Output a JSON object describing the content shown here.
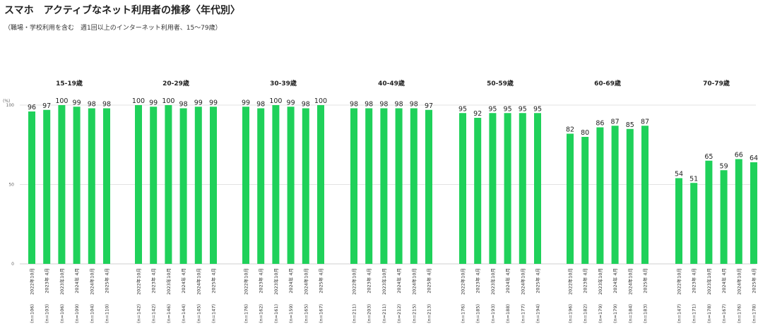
{
  "title": "スマホ　アクティブなネット利用者の推移〈年代別〉",
  "subtitle": "（職場・学校利用を含む　週1回以上のインターネット利用者、15〜79歳）",
  "chart_data": {
    "type": "bar",
    "unit_label": "(%)",
    "ylim": [
      0,
      100
    ],
    "yticks": [
      0,
      50,
      100
    ],
    "grid": true,
    "bar_color": "#1fd15a",
    "categories": [
      "2022年10月",
      "2023年 4月",
      "2023年10月",
      "2024年 4月",
      "2024年10月",
      "2025年 4月"
    ],
    "groups": [
      {
        "name": "15-19歳",
        "values": [
          96,
          97,
          100,
          99,
          98,
          98
        ],
        "n": [
          "(n=106)",
          "(n=103)",
          "(n=106)",
          "(n=109)",
          "(n=104)",
          "(n=110)"
        ]
      },
      {
        "name": "20-29歳",
        "values": [
          100,
          99,
          100,
          98,
          99,
          99
        ],
        "n": [
          "(n=142)",
          "(n=142)",
          "(n=146)",
          "(n=144)",
          "(n=145)",
          "(n=147)"
        ]
      },
      {
        "name": "30-39歳",
        "values": [
          99,
          98,
          100,
          99,
          98,
          100
        ],
        "n": [
          "(n=176)",
          "(n=162)",
          "(n=161)",
          "(n=159)",
          "(n=165)",
          "(n=167)"
        ]
      },
      {
        "name": "40-49歳",
        "values": [
          98,
          98,
          98,
          98,
          98,
          97
        ],
        "n": [
          "(n=211)",
          "(n=203)",
          "(n=211)",
          "(n=212)",
          "(n=215)",
          "(n=213)"
        ]
      },
      {
        "name": "50-59歳",
        "values": [
          95,
          92,
          95,
          95,
          95,
          95
        ],
        "n": [
          "(n=176)",
          "(n=185)",
          "(n=193)",
          "(n=188)",
          "(n=177)",
          "(n=194)"
        ]
      },
      {
        "name": "60-69歳",
        "values": [
          82,
          80,
          86,
          87,
          85,
          87
        ],
        "n": [
          "(n=196)",
          "(n=182)",
          "(n=179)",
          "(n=179)",
          "(n=184)",
          "(n=183)"
        ]
      },
      {
        "name": "70-79歳",
        "values": [
          54,
          51,
          65,
          59,
          66,
          64
        ],
        "n": [
          "(n=147)",
          "(n=171)",
          "(n=178)",
          "(n=167)",
          "(n=176)",
          "(n=178)"
        ]
      }
    ]
  }
}
